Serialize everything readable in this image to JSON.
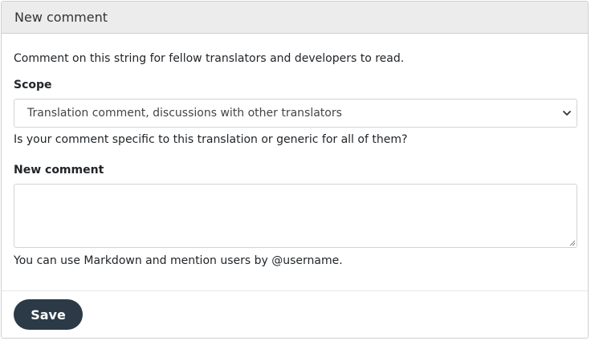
{
  "panel": {
    "title": "New comment"
  },
  "intro": "Comment on this string for fellow translators and developers to read.",
  "scope": {
    "label": "Scope",
    "selected": "Translation comment, discussions with other translators",
    "help": "Is your comment specific to this translation or generic for all of them?"
  },
  "comment": {
    "label": "New comment",
    "value": "",
    "help": "You can use Markdown and mention users by @username."
  },
  "footer": {
    "save_label": "Save"
  },
  "icons": {
    "select_arrow": "chevron-down-icon",
    "resize_grip": "resize-grip-icon"
  },
  "colors": {
    "header_bg": "#ececec",
    "button_bg": "#2c3a47",
    "button_text": "#ffffff",
    "border": "#cfcfcf"
  }
}
